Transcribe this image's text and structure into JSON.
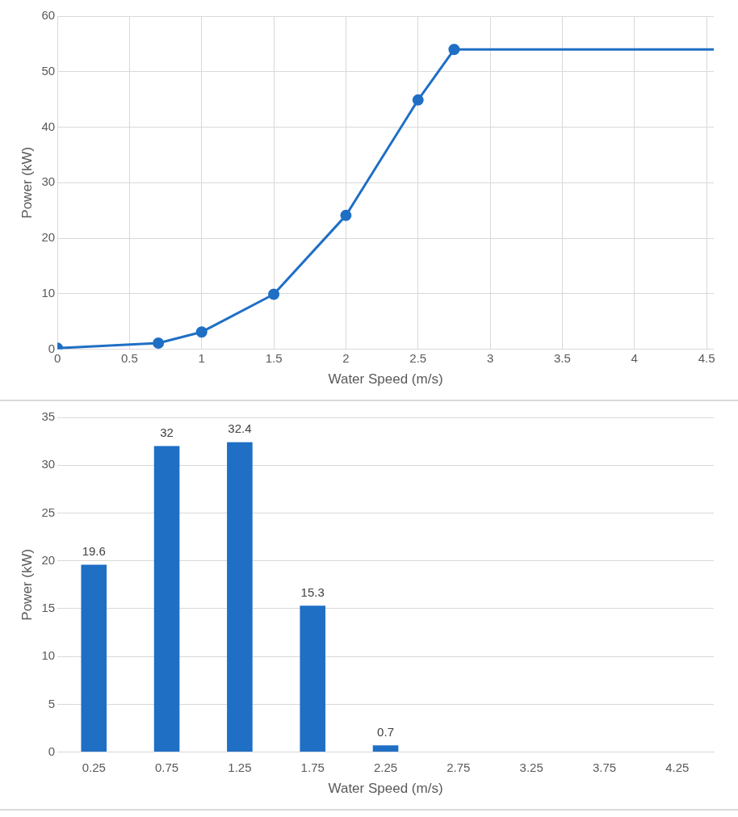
{
  "chart_data": [
    {
      "type": "line",
      "xlabel": "Water Speed (m/s)",
      "ylabel": "Power (kW)",
      "xlim": [
        0,
        4.55
      ],
      "xticks": [
        0,
        0.5,
        1,
        1.5,
        2,
        2.5,
        3,
        3.5,
        4,
        4.5
      ],
      "ylim": [
        0,
        60
      ],
      "yticks": [
        0,
        10,
        20,
        30,
        40,
        50,
        60
      ],
      "grid": true,
      "marker": "circle",
      "series": [
        {
          "color": "#1f6fc5",
          "x": [
            0,
            0.7,
            1,
            1.5,
            2,
            2.5,
            2.75
          ],
          "values": [
            0.2,
            1.1,
            3.1,
            9.9,
            24.1,
            44.9,
            54.0
          ]
        },
        {
          "color": "#1f6fc5",
          "marker": "none",
          "x": [
            2.75,
            4.55
          ],
          "values": [
            54.0,
            54.0
          ]
        }
      ]
    },
    {
      "type": "bar",
      "xlabel": "Water Speed (m/s)",
      "ylabel": "Power (kW)",
      "categories": [
        "0.25",
        "0.75",
        "1.25",
        "1.75",
        "2.25",
        "2.75",
        "3.25",
        "3.75",
        "4.25"
      ],
      "values": [
        19.6,
        32,
        32.4,
        15.3,
        0.7,
        null,
        null,
        null,
        null
      ],
      "color": "#1f6fc5",
      "ylim": [
        0,
        35
      ],
      "yticks": [
        0,
        5,
        10,
        15,
        20,
        25,
        30,
        35
      ],
      "grid": "y",
      "data_labels": true
    }
  ]
}
